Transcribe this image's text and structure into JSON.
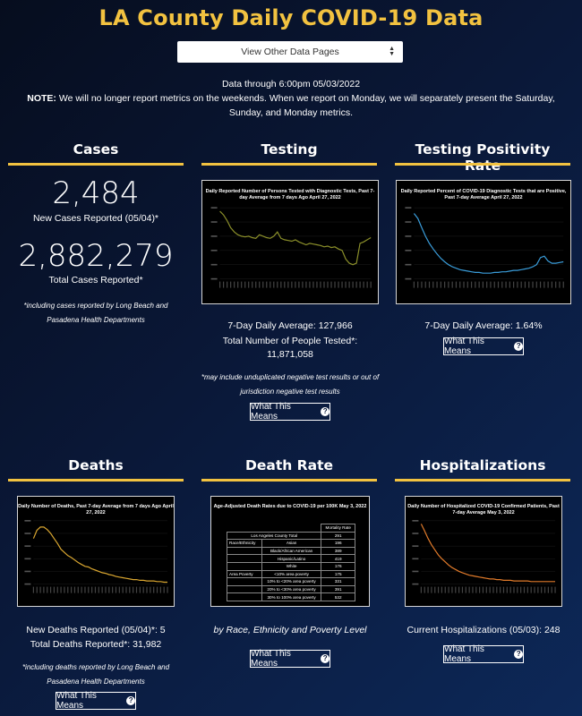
{
  "page": {
    "title": "LA County Daily COVID-19 Data",
    "select_value": "View Other Data Pages",
    "data_through": "Data through 6:00pm 05/03/2022",
    "note_label": "NOTE:",
    "note_text": " We will no longer report metrics on the weekends. When we report on Monday, we will separately present the Saturday, Sunday, and Monday metrics.",
    "what_this_means": "What This Means"
  },
  "cases": {
    "title": "Cases",
    "new_value": "2,484",
    "new_label": "New Cases Reported (05/04)*",
    "total_value": "2,882,279",
    "total_label": "Total Cases Reported*",
    "footnote": "*including cases reported by Long Beach and Pasadena Health Departments"
  },
  "testing": {
    "title": "Testing",
    "chart_title": "Daily Reported Number of Persons Tested with Diagnostic Tests, Past 7-day Average from 7 days Ago April 27, 2022",
    "avg_label": "7-Day Daily Average: 127,966",
    "total_label": "Total Number of People Tested*:",
    "total_value": "11,871,058",
    "footnote": "*may include unduplicated negative test results or out of jurisdiction negative test results"
  },
  "positivity": {
    "title": "Testing Positivity Rate",
    "chart_title": "Daily Reported Percent of COVID-19 Diagnostic Tests that are Positive, Past 7-day Average April 27, 2022",
    "avg_label": "7-Day Daily Average: 1.64%"
  },
  "deaths": {
    "title": "Deaths",
    "chart_title": "Daily Number of Deaths, Past 7-day Average from 7 days Ago April 27, 2022",
    "new_label": "New Deaths Reported (05/04)*: 5",
    "total_label": "Total Deaths Reported*: 31,982",
    "footnote": "*including deaths reported by Long Beach and Pasadena Health Departments"
  },
  "death_rate": {
    "title": "Death Rate",
    "chart_title": "Age-Adjusted Death Rates due to COVID-19 per 100K May 3, 2022",
    "subtitle": "by Race, Ethnicity and Poverty Level",
    "table_header": "Mortality Rate",
    "rows": [
      {
        "group": "Los Angeles County Total",
        "sub": "",
        "value": "291"
      },
      {
        "group": "Race/Ethnicity",
        "sub": "Asian",
        "value": "196"
      },
      {
        "group": "",
        "sub": "Black/African American",
        "value": "389"
      },
      {
        "group": "",
        "sub": "Hispanic/Latino",
        "value": "419"
      },
      {
        "group": "",
        "sub": "White",
        "value": "176"
      },
      {
        "group": "Area Poverty",
        "sub": "<10% area poverty",
        "value": "175"
      },
      {
        "group": "",
        "sub": "10% to <20% area poverty",
        "value": "331"
      },
      {
        "group": "",
        "sub": "20% to <30% area poverty",
        "value": "391"
      },
      {
        "group": "",
        "sub": "30% to 100% area poverty",
        "value": "532"
      }
    ]
  },
  "hospitalizations": {
    "title": "Hospitalizations",
    "chart_title": "Daily Number of Hospitalized COVID-19 Confirmed Patients, Past 7-day Average May 3, 2022",
    "current_label": "Current Hospitalizations (05/03): 248"
  },
  "chart_data": [
    {
      "type": "line",
      "title": "Daily Reported Number of Persons Tested with Diagnostic Tests, Past 7-day Average from 7 days Ago April 27, 2022",
      "color": "#8b8f2a",
      "values": [
        0.95,
        0.9,
        0.82,
        0.72,
        0.66,
        0.62,
        0.6,
        0.59,
        0.6,
        0.58,
        0.57,
        0.62,
        0.6,
        0.58,
        0.57,
        0.6,
        0.66,
        0.57,
        0.55,
        0.54,
        0.53,
        0.55,
        0.52,
        0.5,
        0.48,
        0.5,
        0.49,
        0.48,
        0.47,
        0.45,
        0.46,
        0.44,
        0.45,
        0.42,
        0.4,
        0.28,
        0.22,
        0.2,
        0.22,
        0.5,
        0.52,
        0.55,
        0.58
      ]
    },
    {
      "type": "line",
      "title": "Daily Reported Percent of COVID-19 Diagnostic Tests that are Positive, Past 7-day Average April 27, 2022",
      "color": "#3a9cd9",
      "values": [
        0.92,
        0.85,
        0.72,
        0.6,
        0.5,
        0.42,
        0.35,
        0.29,
        0.24,
        0.2,
        0.17,
        0.15,
        0.13,
        0.12,
        0.11,
        0.1,
        0.09,
        0.09,
        0.08,
        0.08,
        0.08,
        0.09,
        0.09,
        0.1,
        0.1,
        0.11,
        0.12,
        0.12,
        0.13,
        0.14,
        0.15,
        0.17,
        0.2,
        0.3,
        0.32,
        0.25,
        0.22,
        0.22,
        0.23,
        0.24
      ]
    },
    {
      "type": "line",
      "title": "Daily Number of Deaths, Past 7-day Average from 7 days Ago April 27, 2022",
      "color": "#d9a630",
      "values": [
        0.72,
        0.85,
        0.9,
        0.9,
        0.86,
        0.8,
        0.72,
        0.64,
        0.55,
        0.5,
        0.45,
        0.42,
        0.38,
        0.34,
        0.31,
        0.28,
        0.27,
        0.24,
        0.22,
        0.2,
        0.18,
        0.17,
        0.15,
        0.14,
        0.12,
        0.11,
        0.1,
        0.09,
        0.08,
        0.07,
        0.07,
        0.06,
        0.06,
        0.05,
        0.05,
        0.05,
        0.04,
        0.04,
        0.03,
        0.03
      ]
    },
    {
      "type": "line",
      "title": "Daily Number of Hospitalized COVID-19 Confirmed Patients, Past 7-day Average May 3, 2022",
      "color": "#e07a2a",
      "values": [
        0.95,
        0.84,
        0.72,
        0.62,
        0.54,
        0.46,
        0.4,
        0.35,
        0.3,
        0.26,
        0.23,
        0.2,
        0.18,
        0.16,
        0.14,
        0.13,
        0.12,
        0.11,
        0.1,
        0.09,
        0.08,
        0.08,
        0.07,
        0.07,
        0.06,
        0.06,
        0.06,
        0.05,
        0.05,
        0.05,
        0.05,
        0.05,
        0.04,
        0.04,
        0.04,
        0.04,
        0.04,
        0.04,
        0.04,
        0.04
      ]
    }
  ]
}
